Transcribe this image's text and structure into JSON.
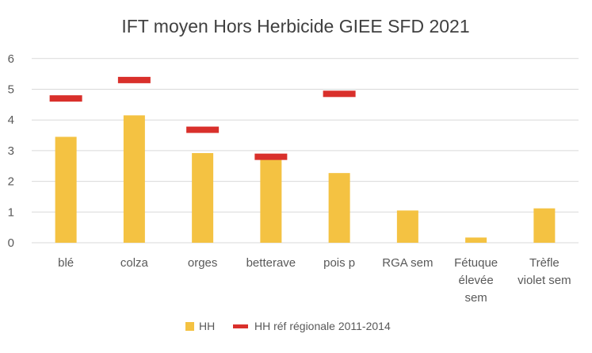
{
  "chart_data": {
    "type": "bar",
    "title": "IFT moyen Hors Herbicide  GIEE SFD 2021",
    "categories": [
      [
        "blé"
      ],
      [
        "colza"
      ],
      [
        "orges"
      ],
      [
        "betterave"
      ],
      [
        "pois p"
      ],
      [
        "RGA sem"
      ],
      [
        "Fétuque",
        "élevée",
        "sem"
      ],
      [
        "Trèfle",
        "violet sem"
      ]
    ],
    "series": [
      {
        "name": "HH",
        "type": "bar",
        "color": "#f4c242",
        "values": [
          3.45,
          4.15,
          2.92,
          2.7,
          2.27,
          1.05,
          0.17,
          1.12
        ]
      },
      {
        "name": "HH réf régionale 2011-2014",
        "type": "marker",
        "color": "#d9302b",
        "values": [
          4.7,
          5.3,
          3.68,
          2.8,
          4.85,
          null,
          null,
          null
        ]
      }
    ],
    "y_ticks": [
      "0",
      "1",
      "2",
      "3",
      "4",
      "5",
      "6"
    ],
    "ylim": [
      0,
      6
    ],
    "grid": true,
    "legend_position": "bottom"
  }
}
